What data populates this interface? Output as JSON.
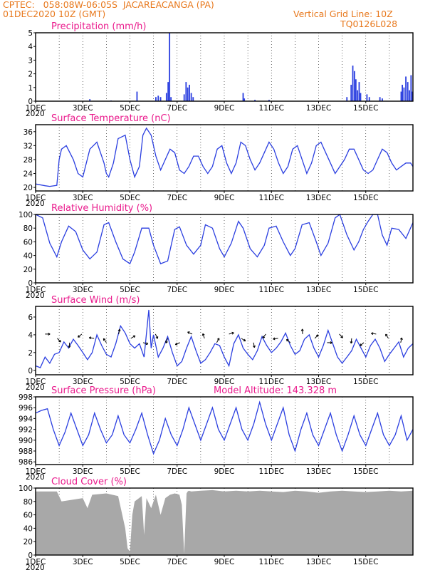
{
  "header": {
    "line1_left": "CPTEC:   058:08W-06:05S  JACAREACANGA (PA)",
    "line2_left": "01DEC2020 10Z (GMT)",
    "line2_right": "Vertical Grid Line: 10Z",
    "line3_right": "TQ0126L028"
  },
  "colors": {
    "header": "#e8791e",
    "title": "#ea1a8c",
    "series": "#2b3fe0",
    "cloud": "#a8a8a8"
  },
  "chart_data": [
    {
      "id": "precip",
      "type": "bar",
      "title": "Precipitation  (mm/h)",
      "x_ticks": [
        "1DEC",
        "3DEC",
        "5DEC",
        "7DEC",
        "9DEC",
        "11DEC",
        "13DEC",
        "15DEC"
      ],
      "year_label": "2020",
      "ylim": [
        0,
        5
      ],
      "y_ticks": [
        0,
        1,
        2,
        3,
        4,
        5
      ],
      "bars": [
        [
          2.3,
          0.15
        ],
        [
          3.2,
          0.05
        ],
        [
          4.3,
          0.7
        ],
        [
          5.1,
          0.3
        ],
        [
          5.2,
          0.4
        ],
        [
          5.3,
          0.3
        ],
        [
          5.55,
          0.6
        ],
        [
          5.62,
          1.4
        ],
        [
          5.68,
          5.0
        ],
        [
          5.74,
          0.3
        ],
        [
          6.3,
          0.5
        ],
        [
          6.38,
          1.4
        ],
        [
          6.45,
          1.0
        ],
        [
          6.52,
          1.2
        ],
        [
          6.6,
          0.6
        ],
        [
          6.68,
          0.3
        ],
        [
          8.8,
          0.6
        ],
        [
          8.85,
          0.2
        ],
        [
          9.3,
          0.1
        ],
        [
          9.9,
          0.1
        ],
        [
          13.2,
          0.3
        ],
        [
          13.38,
          1.2
        ],
        [
          13.45,
          2.6
        ],
        [
          13.52,
          2.2
        ],
        [
          13.58,
          1.6
        ],
        [
          13.65,
          0.8
        ],
        [
          13.72,
          1.4
        ],
        [
          13.78,
          0.6
        ],
        [
          14.05,
          0.5
        ],
        [
          14.15,
          0.3
        ],
        [
          14.6,
          0.3
        ],
        [
          14.7,
          0.2
        ],
        [
          15.5,
          0.7
        ],
        [
          15.55,
          1.2
        ],
        [
          15.62,
          1.0
        ],
        [
          15.7,
          1.8
        ],
        [
          15.78,
          1.4
        ],
        [
          15.85,
          0.8
        ],
        [
          15.92,
          1.9
        ],
        [
          15.98,
          0.7
        ]
      ]
    },
    {
      "id": "temp",
      "type": "line",
      "title": "Surface Temperature  (nC)",
      "x_ticks": [
        "1DEC",
        "3DEC",
        "5DEC",
        "7DEC",
        "9DEC",
        "11DEC",
        "13DEC",
        "15DEC"
      ],
      "year_label": "2020",
      "ylim": [
        19,
        38
      ],
      "y_ticks": [
        20,
        24,
        28,
        32,
        36
      ],
      "x": [
        0,
        0.4,
        0.6,
        0.9,
        1.0,
        1.1,
        1.3,
        1.6,
        1.8,
        2.0,
        2.3,
        2.6,
        2.9,
        3.0,
        3.1,
        3.3,
        3.5,
        3.8,
        4.0,
        4.2,
        4.4,
        4.55,
        4.7,
        4.9,
        5.1,
        5.3,
        5.5,
        5.7,
        5.9,
        6.1,
        6.3,
        6.5,
        6.7,
        6.9,
        7.1,
        7.3,
        7.5,
        7.7,
        7.9,
        8.1,
        8.3,
        8.5,
        8.7,
        8.9,
        9.1,
        9.3,
        9.5,
        9.7,
        9.9,
        10.1,
        10.3,
        10.5,
        10.7,
        10.9,
        11.1,
        11.3,
        11.5,
        11.7,
        11.9,
        12.1,
        12.3,
        12.5,
        12.7,
        12.9,
        13.1,
        13.3,
        13.5,
        13.7,
        13.9,
        14.1,
        14.3,
        14.5,
        14.7,
        14.9,
        15.1,
        15.3,
        15.5,
        15.7,
        15.9,
        16.0
      ],
      "values": [
        21,
        20.5,
        20.3,
        20.6,
        28,
        31,
        32,
        28,
        24,
        23,
        31,
        33,
        27,
        24,
        23,
        27,
        34,
        35,
        28,
        23,
        26,
        35,
        37,
        35,
        29,
        25,
        28,
        31,
        30,
        25,
        24,
        26,
        29,
        29,
        26,
        24,
        26,
        31,
        32,
        27,
        24,
        27,
        33,
        32,
        28,
        25,
        27,
        30,
        33,
        31,
        27,
        24,
        26,
        31,
        32,
        28,
        24,
        27,
        32,
        33,
        30,
        27,
        24,
        26,
        28,
        31,
        31,
        28,
        25,
        24,
        25,
        28,
        31,
        30,
        27,
        25,
        26,
        27,
        27,
        26
      ]
    },
    {
      "id": "rh",
      "type": "line",
      "title": "Relative Humidity  (%)",
      "x_ticks": [
        "1DEC",
        "3DEC",
        "5DEC",
        "7DEC",
        "9DEC",
        "11DEC",
        "13DEC",
        "15DEC"
      ],
      "year_label": "2020",
      "ylim": [
        0,
        100
      ],
      "y_ticks": [
        0,
        20,
        40,
        60,
        80,
        100
      ],
      "x": [
        0,
        0.3,
        0.6,
        0.9,
        1.1,
        1.4,
        1.7,
        2.0,
        2.3,
        2.6,
        2.9,
        3.1,
        3.4,
        3.7,
        4.0,
        4.2,
        4.5,
        4.8,
        5.0,
        5.3,
        5.6,
        5.9,
        6.1,
        6.4,
        6.7,
        7.0,
        7.2,
        7.5,
        7.8,
        8.0,
        8.3,
        8.6,
        8.8,
        9.1,
        9.4,
        9.7,
        9.9,
        10.2,
        10.5,
        10.8,
        11.0,
        11.3,
        11.6,
        11.9,
        12.1,
        12.4,
        12.7,
        12.9,
        13.2,
        13.5,
        13.7,
        13.9,
        14.1,
        14.3,
        14.5,
        14.7,
        14.9,
        15.1,
        15.4,
        15.7,
        16.0
      ],
      "values": [
        100,
        95,
        58,
        38,
        60,
        83,
        75,
        48,
        35,
        45,
        85,
        88,
        60,
        35,
        28,
        45,
        80,
        80,
        55,
        28,
        32,
        78,
        82,
        55,
        42,
        55,
        85,
        80,
        50,
        38,
        58,
        90,
        80,
        50,
        38,
        55,
        80,
        83,
        60,
        40,
        50,
        85,
        88,
        60,
        40,
        58,
        95,
        100,
        70,
        48,
        60,
        78,
        90,
        100,
        100,
        70,
        55,
        80,
        78,
        65,
        88
      ]
    },
    {
      "id": "wind",
      "type": "line",
      "title": "Surface Wind  (m/s)",
      "x_ticks": [
        "1DEC",
        "3DEC",
        "5DEC",
        "7DEC",
        "9DEC",
        "11DEC",
        "13DEC",
        "15DEC"
      ],
      "year_label": "2020",
      "ylim": [
        -0.5,
        7.2
      ],
      "y_ticks": [
        0,
        2,
        4,
        6
      ],
      "x": [
        0,
        0.2,
        0.4,
        0.6,
        0.8,
        1.0,
        1.2,
        1.4,
        1.6,
        1.8,
        2.0,
        2.2,
        2.4,
        2.6,
        2.8,
        3.0,
        3.2,
        3.4,
        3.6,
        3.8,
        4.0,
        4.2,
        4.4,
        4.6,
        4.8,
        4.9,
        5.0,
        5.2,
        5.4,
        5.6,
        5.8,
        6.0,
        6.2,
        6.4,
        6.6,
        6.8,
        7.0,
        7.2,
        7.4,
        7.6,
        7.8,
        8.0,
        8.2,
        8.4,
        8.6,
        8.8,
        9.0,
        9.2,
        9.4,
        9.6,
        9.8,
        10.0,
        10.2,
        10.4,
        10.6,
        10.8,
        11.0,
        11.2,
        11.4,
        11.6,
        11.8,
        12.0,
        12.2,
        12.4,
        12.6,
        12.8,
        13.0,
        13.2,
        13.4,
        13.6,
        13.8,
        14.0,
        14.2,
        14.4,
        14.6,
        14.8,
        15.0,
        15.2,
        15.4,
        15.6,
        15.8,
        16.0
      ],
      "values": [
        0.5,
        0.3,
        1.5,
        0.8,
        1.8,
        2.0,
        3.2,
        2.5,
        3.5,
        2.8,
        2.0,
        1.2,
        2.0,
        4.0,
        2.8,
        1.8,
        1.5,
        3.0,
        5.0,
        4.2,
        3.0,
        2.5,
        3.0,
        1.5,
        6.8,
        2.5,
        4.0,
        1.5,
        2.5,
        3.8,
        2.0,
        0.5,
        1.0,
        2.5,
        3.8,
        2.2,
        0.8,
        1.2,
        2.0,
        3.0,
        2.8,
        1.5,
        0.5,
        3.0,
        4.0,
        2.5,
        1.8,
        1.2,
        2.2,
        3.8,
        2.8,
        2.0,
        2.5,
        3.2,
        4.2,
        2.8,
        1.8,
        2.2,
        3.5,
        4.0,
        2.5,
        1.5,
        2.8,
        4.5,
        3.0,
        1.5,
        0.8,
        1.5,
        2.2,
        3.5,
        2.5,
        1.5,
        2.8,
        3.5,
        2.5,
        1.0,
        1.8,
        2.5,
        3.2,
        1.5,
        2.5,
        3.0
      ]
    },
    {
      "id": "pres",
      "type": "line",
      "title": "Surface Pressure  (hPa)",
      "annotation": "Model Altitude: 143.328  m",
      "x_ticks": [
        "1DEC",
        "3DEC",
        "5DEC",
        "7DEC",
        "9DEC",
        "11DEC",
        "13DEC",
        "15DEC"
      ],
      "year_label": "2020",
      "ylim": [
        985.5,
        998
      ],
      "y_ticks": [
        986,
        988,
        990,
        992,
        994,
        996,
        998
      ],
      "x": [
        0,
        0.25,
        0.5,
        0.75,
        1.0,
        1.25,
        1.5,
        1.75,
        2.0,
        2.25,
        2.5,
        2.75,
        3.0,
        3.25,
        3.5,
        3.75,
        4.0,
        4.25,
        4.5,
        4.75,
        5.0,
        5.25,
        5.5,
        5.75,
        6.0,
        6.25,
        6.5,
        6.75,
        7.0,
        7.25,
        7.5,
        7.75,
        8.0,
        8.25,
        8.5,
        8.75,
        9.0,
        9.25,
        9.5,
        9.75,
        10.0,
        10.25,
        10.5,
        10.75,
        11.0,
        11.25,
        11.5,
        11.75,
        12.0,
        12.25,
        12.5,
        12.75,
        13.0,
        13.25,
        13.5,
        13.75,
        14.0,
        14.25,
        14.5,
        14.75,
        15.0,
        15.25,
        15.5,
        15.75,
        16.0
      ],
      "values": [
        995,
        995.5,
        995.8,
        992,
        989,
        991.5,
        995,
        992,
        989,
        991,
        995,
        992,
        989.5,
        991,
        994.5,
        991,
        989.5,
        992,
        995,
        991,
        987.5,
        990,
        994,
        991,
        989,
        992,
        996,
        993,
        990,
        993,
        996,
        992,
        990,
        993,
        996,
        992,
        990,
        993,
        997,
        993,
        990,
        993,
        996,
        991,
        988,
        992,
        995,
        991,
        989,
        992,
        995,
        991,
        988,
        991,
        994.5,
        991,
        989,
        992,
        995,
        991,
        989,
        991,
        994.5,
        990,
        992
      ]
    },
    {
      "id": "cloud",
      "type": "area",
      "title": "Cloud Cover  (%)",
      "x_ticks": [
        "1DEC",
        "3DEC",
        "5DEC",
        "7DEC",
        "9DEC",
        "11DEC",
        "13DEC",
        "15DEC"
      ],
      "year_label": "2020",
      "ylim": [
        0,
        100
      ],
      "y_ticks": [
        0,
        20,
        40,
        60,
        80,
        100
      ],
      "x": [
        0,
        0.9,
        1.1,
        2.0,
        2.2,
        2.4,
        3.0,
        3.5,
        3.8,
        3.9,
        4.0,
        4.1,
        4.2,
        4.5,
        4.55,
        4.6,
        4.7,
        4.9,
        5.1,
        5.3,
        5.5,
        5.7,
        5.9,
        6.1,
        6.2,
        6.3,
        6.4,
        6.45,
        6.5,
        6.6,
        7.0,
        7.5,
        8.0,
        8.5,
        9.0,
        9.5,
        10.0,
        10.5,
        11.0,
        11.5,
        12.0,
        12.5,
        13.0,
        13.5,
        14.0,
        14.5,
        15.0,
        15.5,
        16.0
      ],
      "values": [
        95,
        95,
        80,
        85,
        70,
        90,
        92,
        88,
        40,
        10,
        5,
        60,
        80,
        88,
        60,
        30,
        85,
        70,
        90,
        60,
        85,
        90,
        92,
        90,
        75,
        2,
        92,
        95,
        96,
        95,
        96,
        97,
        95,
        96,
        95,
        96,
        95,
        94,
        96,
        95,
        93,
        95,
        96,
        95,
        94,
        95,
        96,
        95,
        96
      ]
    }
  ]
}
